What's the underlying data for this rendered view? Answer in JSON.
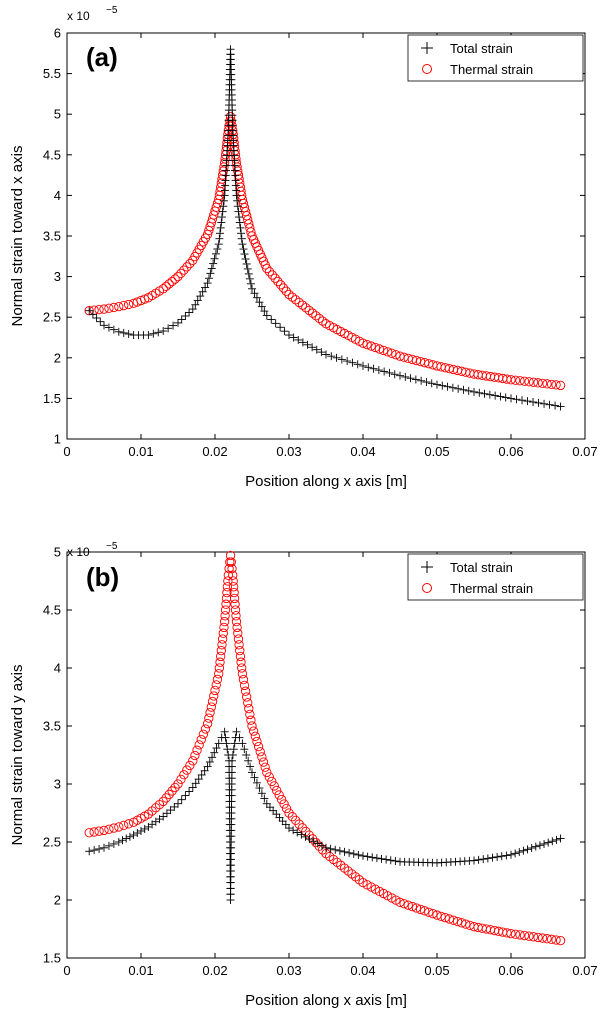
{
  "chart_data": [
    {
      "type": "scatter",
      "panel_label": "(a)",
      "xlabel": "Position along x axis [m]",
      "ylabel": "Normal strain toward x axis",
      "y_multiplier": "x 10",
      "y_exponent": "−5",
      "xlim": [
        0,
        0.07
      ],
      "ylim": [
        1,
        6
      ],
      "xticks": [
        "0",
        "0.01",
        "0.02",
        "0.03",
        "0.04",
        "0.05",
        "0.06",
        "0.07"
      ],
      "yticks": [
        "1",
        "1.5",
        "2",
        "2.5",
        "3",
        "3.5",
        "4",
        "4.5",
        "5",
        "5.5",
        "6"
      ],
      "grid": false,
      "legend_position": "top-right",
      "series": [
        {
          "name": "Total strain",
          "marker": "plus",
          "color": "#000000",
          "points": [
            [
              0.003,
              2.58
            ],
            [
              0.005,
              2.4
            ],
            [
              0.007,
              2.32
            ],
            [
              0.009,
              2.28
            ],
            [
              0.011,
              2.28
            ],
            [
              0.013,
              2.33
            ],
            [
              0.015,
              2.43
            ],
            [
              0.017,
              2.6
            ],
            [
              0.019,
              2.92
            ],
            [
              0.0205,
              3.4
            ],
            [
              0.0213,
              4.0
            ],
            [
              0.0218,
              4.8
            ],
            [
              0.0221,
              5.8
            ],
            [
              0.0224,
              4.8
            ],
            [
              0.0229,
              4.0
            ],
            [
              0.0237,
              3.4
            ],
            [
              0.025,
              2.85
            ],
            [
              0.027,
              2.52
            ],
            [
              0.03,
              2.28
            ],
            [
              0.035,
              2.04
            ],
            [
              0.04,
              1.9
            ],
            [
              0.045,
              1.78
            ],
            [
              0.05,
              1.67
            ],
            [
              0.055,
              1.58
            ],
            [
              0.06,
              1.5
            ],
            [
              0.0667,
              1.4
            ]
          ]
        },
        {
          "name": "Thermal strain",
          "marker": "circle",
          "color": "#ff0000",
          "points": [
            [
              0.003,
              2.58
            ],
            [
              0.005,
              2.6
            ],
            [
              0.007,
              2.63
            ],
            [
              0.009,
              2.67
            ],
            [
              0.011,
              2.74
            ],
            [
              0.013,
              2.85
            ],
            [
              0.015,
              3.0
            ],
            [
              0.017,
              3.2
            ],
            [
              0.019,
              3.52
            ],
            [
              0.0205,
              3.95
            ],
            [
              0.0213,
              4.4
            ],
            [
              0.0218,
              4.8
            ],
            [
              0.0221,
              4.97
            ],
            [
              0.0224,
              4.8
            ],
            [
              0.0229,
              4.4
            ],
            [
              0.0237,
              3.95
            ],
            [
              0.025,
              3.5
            ],
            [
              0.027,
              3.1
            ],
            [
              0.03,
              2.78
            ],
            [
              0.035,
              2.42
            ],
            [
              0.04,
              2.18
            ],
            [
              0.045,
              2.02
            ],
            [
              0.05,
              1.9
            ],
            [
              0.055,
              1.8
            ],
            [
              0.06,
              1.73
            ],
            [
              0.0667,
              1.66
            ]
          ]
        }
      ]
    },
    {
      "type": "scatter",
      "panel_label": "(b)",
      "xlabel": "Position along x axis [m]",
      "ylabel": "Normal strain toward y axis",
      "y_multiplier": "x 10",
      "y_exponent": "−5",
      "xlim": [
        0,
        0.07
      ],
      "ylim": [
        1.5,
        5
      ],
      "xticks": [
        "0",
        "0.01",
        "0.02",
        "0.03",
        "0.04",
        "0.05",
        "0.06",
        "0.07"
      ],
      "yticks": [
        "1.5",
        "2",
        "2.5",
        "3",
        "3.5",
        "4",
        "4.5",
        "5"
      ],
      "grid": false,
      "legend_position": "top-right",
      "series": [
        {
          "name": "Total strain",
          "marker": "plus",
          "color": "#000000",
          "points": [
            [
              0.003,
              2.42
            ],
            [
              0.005,
              2.45
            ],
            [
              0.007,
              2.5
            ],
            [
              0.009,
              2.56
            ],
            [
              0.011,
              2.63
            ],
            [
              0.013,
              2.72
            ],
            [
              0.015,
              2.83
            ],
            [
              0.017,
              2.97
            ],
            [
              0.019,
              3.15
            ],
            [
              0.0205,
              3.35
            ],
            [
              0.0213,
              3.45
            ],
            [
              0.0219,
              3.2
            ],
            [
              0.0221,
              2.0
            ],
            [
              0.0223,
              3.2
            ],
            [
              0.0229,
              3.45
            ],
            [
              0.0237,
              3.35
            ],
            [
              0.025,
              3.1
            ],
            [
              0.027,
              2.83
            ],
            [
              0.03,
              2.62
            ],
            [
              0.035,
              2.45
            ],
            [
              0.04,
              2.38
            ],
            [
              0.045,
              2.33
            ],
            [
              0.05,
              2.32
            ],
            [
              0.055,
              2.34
            ],
            [
              0.06,
              2.39
            ],
            [
              0.0667,
              2.53
            ]
          ]
        },
        {
          "name": "Thermal strain",
          "marker": "circle",
          "color": "#ff0000",
          "points": [
            [
              0.003,
              2.58
            ],
            [
              0.005,
              2.6
            ],
            [
              0.007,
              2.63
            ],
            [
              0.009,
              2.67
            ],
            [
              0.011,
              2.74
            ],
            [
              0.013,
              2.85
            ],
            [
              0.015,
              3.0
            ],
            [
              0.017,
              3.2
            ],
            [
              0.019,
              3.52
            ],
            [
              0.0205,
              3.95
            ],
            [
              0.0213,
              4.4
            ],
            [
              0.0218,
              4.8
            ],
            [
              0.0221,
              4.97
            ],
            [
              0.0224,
              4.8
            ],
            [
              0.0229,
              4.4
            ],
            [
              0.0237,
              3.95
            ],
            [
              0.025,
              3.5
            ],
            [
              0.027,
              3.1
            ],
            [
              0.03,
              2.75
            ],
            [
              0.035,
              2.4
            ],
            [
              0.04,
              2.15
            ],
            [
              0.045,
              1.98
            ],
            [
              0.05,
              1.87
            ],
            [
              0.055,
              1.77
            ],
            [
              0.06,
              1.71
            ],
            [
              0.0667,
              1.65
            ]
          ]
        }
      ]
    }
  ]
}
